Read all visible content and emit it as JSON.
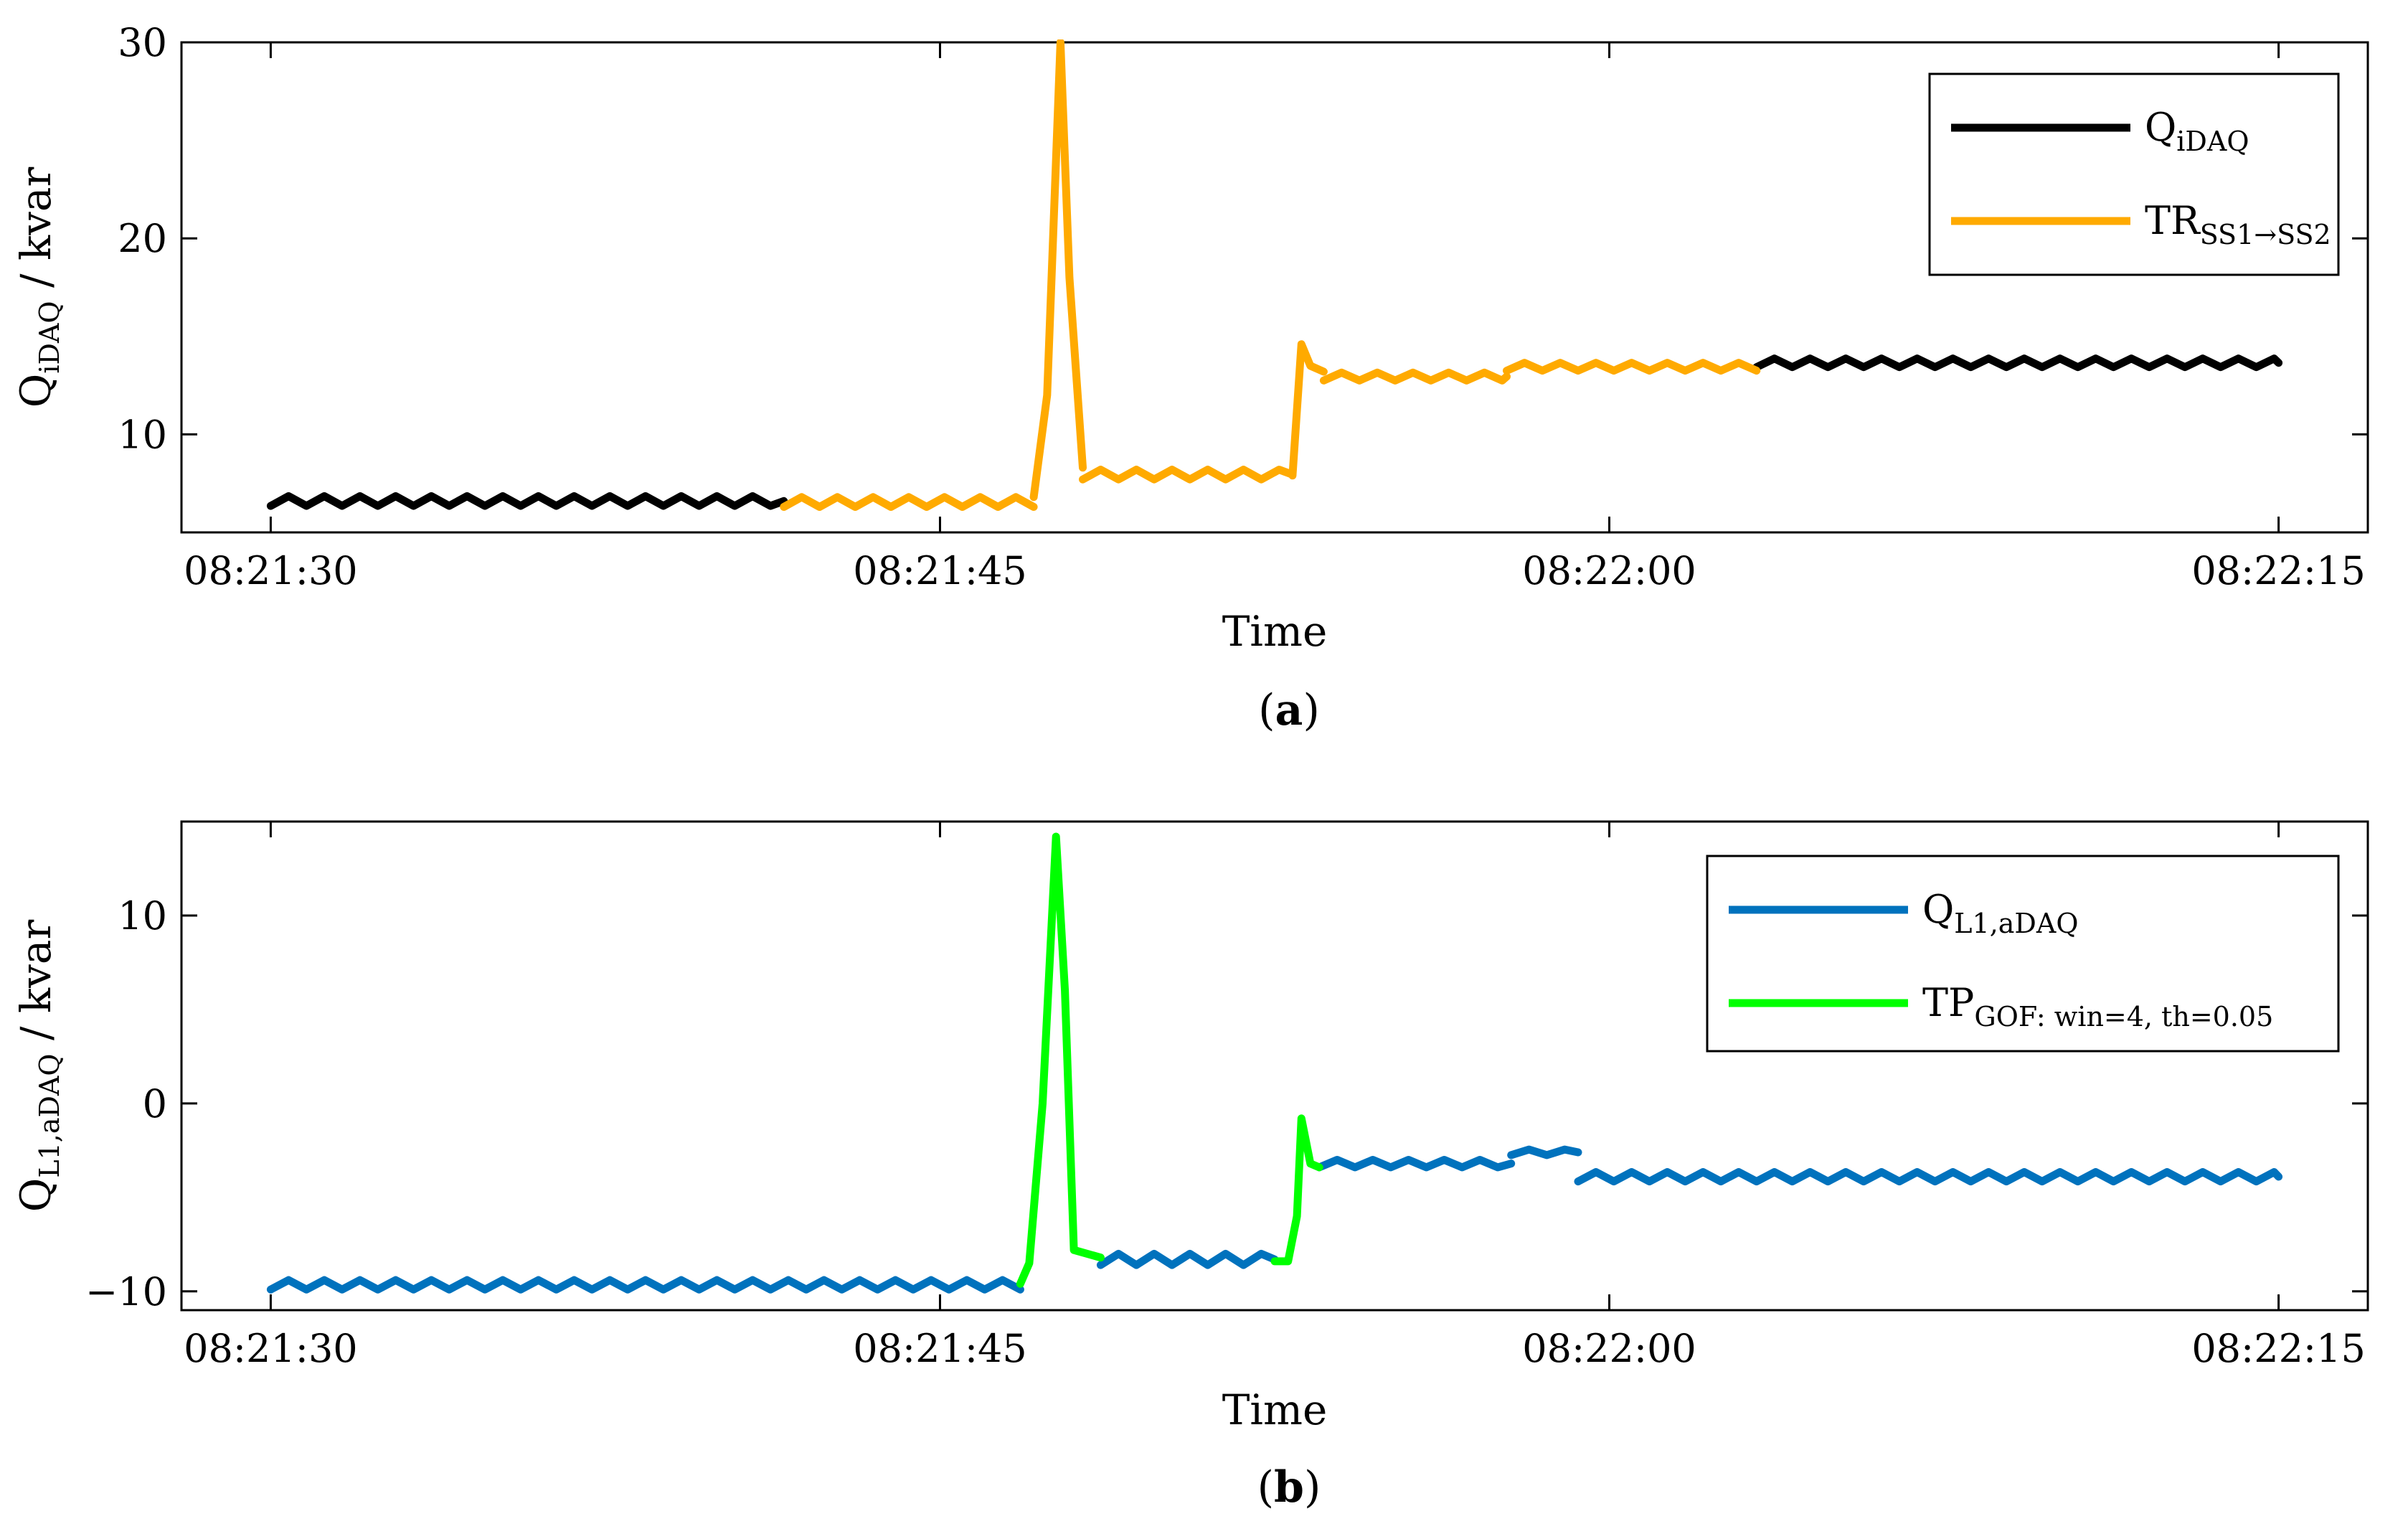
{
  "chart_data": [
    {
      "panel": "(a)",
      "panel_label": {
        "open": "(",
        "letter": "a",
        "close": ")"
      },
      "type": "line",
      "xlabel": "Time",
      "ylabel": {
        "main": "Q",
        "sub": "iDAQ",
        "suffix": " / kvar"
      },
      "xlim": [
        "08:21:28",
        "08:22:17"
      ],
      "ylim": [
        5,
        30
      ],
      "xticks": [
        "08:21:30",
        "08:21:45",
        "08:22:00",
        "08:22:15"
      ],
      "yticks": [
        10,
        20,
        30
      ],
      "grid": false,
      "legend_position": "top-right",
      "series": [
        {
          "name": "QiDAQ",
          "legend_main": "Q",
          "legend_sub": "iDAQ",
          "color": "#000000",
          "segments": [
            {
              "t_start": "08:21:30",
              "t_end": "08:21:41.5",
              "base": 6.6,
              "amp": 0.25,
              "period_s": 0.8
            },
            {
              "t_start": "08:22:03.3",
              "t_end": "08:22:15",
              "base": 13.65,
              "amp": 0.22,
              "period_s": 0.8
            }
          ]
        },
        {
          "name": "TRSS1→SS2",
          "legend_main": "TR",
          "legend_sub": "SS1→SS2",
          "color": "#FFAA00",
          "segments": [
            {
              "t_start": "08:21:41.5",
              "t_end": "08:21:47.1",
              "base": 6.55,
              "amp": 0.25,
              "period_s": 0.8
            },
            {
              "t_start": "08:21:47.1",
              "t_end": "08:21:48.2",
              "points": [
                [
                  "08:21:47.1",
                  6.8
                ],
                [
                  "08:21:47.4",
                  12
                ],
                [
                  "08:21:47.7",
                  30
                ],
                [
                  "08:21:47.9",
                  18
                ],
                [
                  "08:21:48.2",
                  8.3
                ]
              ]
            },
            {
              "t_start": "08:21:48.2",
              "t_end": "08:21:52.9",
              "base": 7.95,
              "amp": 0.25,
              "period_s": 0.8
            },
            {
              "t_start": "08:21:52.9",
              "t_end": "08:21:53.6",
              "points": [
                [
                  "08:21:52.9",
                  7.9
                ],
                [
                  "08:21:53.1",
                  14.6
                ],
                [
                  "08:21:53.3",
                  13.5
                ],
                [
                  "08:21:53.6",
                  13.2
                ]
              ]
            },
            {
              "t_start": "08:21:53.6",
              "t_end": "08:21:57.7",
              "base": 12.95,
              "amp": 0.2,
              "period_s": 0.8
            },
            {
              "t_start": "08:21:57.7",
              "t_end": "08:22:03.3",
              "base": 13.45,
              "amp": 0.2,
              "period_s": 0.8
            }
          ]
        }
      ]
    },
    {
      "panel": "(b)",
      "panel_label": {
        "open": "(",
        "letter": "b",
        "close": ")"
      },
      "type": "line",
      "xlabel": "Time",
      "ylabel": {
        "main": "Q",
        "sub": "L1,aDAQ",
        "suffix": " / kvar"
      },
      "xlim": [
        "08:21:28",
        "08:22:17"
      ],
      "ylim": [
        -11,
        15
      ],
      "xticks": [
        "08:21:30",
        "08:21:45",
        "08:22:00",
        "08:22:15"
      ],
      "yticks": [
        -10,
        0,
        10
      ],
      "ytick_labels": [
        "−10",
        "0",
        "10"
      ],
      "grid": false,
      "legend_position": "top-right",
      "series": [
        {
          "name": "QL1,aDAQ",
          "legend_main": "Q",
          "legend_sub": "L1,aDAQ",
          "color": "#0072BD",
          "segments": [
            {
              "t_start": "08:21:30",
              "t_end": "08:21:46.8",
              "base": -9.65,
              "amp": 0.25,
              "period_s": 0.8
            },
            {
              "t_start": "08:21:48.6",
              "t_end": "08:21:52.5",
              "base": -8.3,
              "amp": 0.3,
              "period_s": 0.8
            },
            {
              "t_start": "08:21:53.5",
              "t_end": "08:21:57.8",
              "base": -3.2,
              "amp": 0.2,
              "period_s": 0.8
            },
            {
              "t_start": "08:21:57.8",
              "t_end": "08:21:59.3",
              "base": -2.6,
              "amp": 0.15,
              "period_s": 0.8
            },
            {
              "t_start": "08:21:59.3",
              "t_end": "08:22:15",
              "base": -3.9,
              "amp": 0.25,
              "period_s": 0.8
            }
          ]
        },
        {
          "name": "TPGOF: win=4, th=0.05",
          "legend_main": "TP",
          "legend_sub": "GOF: win=4, th=0.05",
          "color": "#00FF00",
          "segments": [
            {
              "t_start": "08:21:46.8",
              "t_end": "08:21:48.6",
              "points": [
                [
                  "08:21:46.8",
                  -9.6
                ],
                [
                  "08:21:47.0",
                  -8.5
                ],
                [
                  "08:21:47.3",
                  0
                ],
                [
                  "08:21:47.6",
                  14.2
                ],
                [
                  "08:21:47.8",
                  6
                ],
                [
                  "08:21:48.0",
                  -7.8
                ],
                [
                  "08:21:48.6",
                  -8.2
                ]
              ]
            },
            {
              "t_start": "08:21:52.5",
              "t_end": "08:21:53.5",
              "points": [
                [
                  "08:21:52.5",
                  -8.4
                ],
                [
                  "08:21:52.8",
                  -8.4
                ],
                [
                  "08:21:53.0",
                  -6
                ],
                [
                  "08:21:53.1",
                  -0.8
                ],
                [
                  "08:21:53.3",
                  -3.2
                ],
                [
                  "08:21:53.5",
                  -3.4
                ]
              ]
            }
          ]
        }
      ]
    }
  ]
}
